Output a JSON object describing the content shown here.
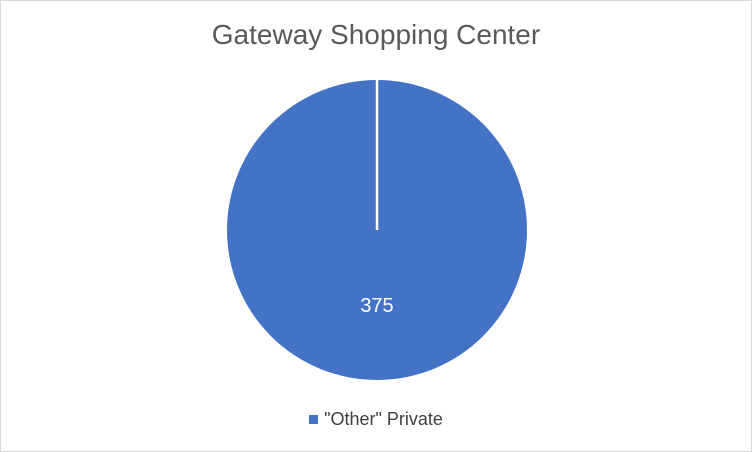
{
  "chart_data": {
    "type": "pie",
    "title": "Gateway Shopping Center",
    "categories": [
      "\"Other\" Private"
    ],
    "values": [
      375
    ],
    "data_labels": [
      "375"
    ],
    "colors": [
      "#4472c4"
    ],
    "legend_position": "bottom"
  }
}
